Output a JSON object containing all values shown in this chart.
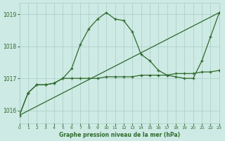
{
  "title": "Graphe pression niveau de la mer (hPa)",
  "background_color": "#ceeae4",
  "grid_color": "#aaccc6",
  "line_color": "#2d6a2d",
  "xlim": [
    0,
    23
  ],
  "ylim": [
    1015.6,
    1019.35
  ],
  "yticks": [
    1016,
    1017,
    1018,
    1019
  ],
  "xticks": [
    0,
    1,
    2,
    3,
    4,
    5,
    6,
    7,
    8,
    9,
    10,
    11,
    12,
    13,
    14,
    15,
    16,
    17,
    18,
    19,
    20,
    21,
    22,
    23
  ],
  "line1_x": [
    0,
    23
  ],
  "line1_y": [
    1015.85,
    1019.05
  ],
  "line2_x": [
    0,
    1,
    2,
    3,
    4,
    5,
    6,
    7,
    8,
    9,
    10,
    11,
    12,
    13,
    14,
    15,
    16,
    17,
    18,
    19,
    20,
    21,
    22,
    23
  ],
  "line2_y": [
    1015.85,
    1016.55,
    1016.8,
    1016.8,
    1016.85,
    1017.0,
    1017.3,
    1018.05,
    1018.55,
    1018.85,
    1019.05,
    1018.85,
    1018.8,
    1018.45,
    1017.75,
    1017.55,
    1017.25,
    1017.1,
    1017.05,
    1017.0,
    1017.0,
    1017.55,
    1018.3,
    1019.05
  ],
  "line3_x": [
    0,
    1,
    2,
    3,
    4,
    5,
    6,
    7,
    8,
    9,
    10,
    11,
    12,
    13,
    14,
    15,
    16,
    17,
    18,
    19,
    20,
    21,
    22,
    23
  ],
  "line3_y": [
    1015.85,
    1016.55,
    1016.8,
    1016.8,
    1016.85,
    1017.0,
    1017.0,
    1017.0,
    1017.0,
    1017.0,
    1017.05,
    1017.05,
    1017.05,
    1017.05,
    1017.1,
    1017.1,
    1017.1,
    1017.1,
    1017.15,
    1017.15,
    1017.15,
    1017.2,
    1017.2,
    1017.25
  ]
}
